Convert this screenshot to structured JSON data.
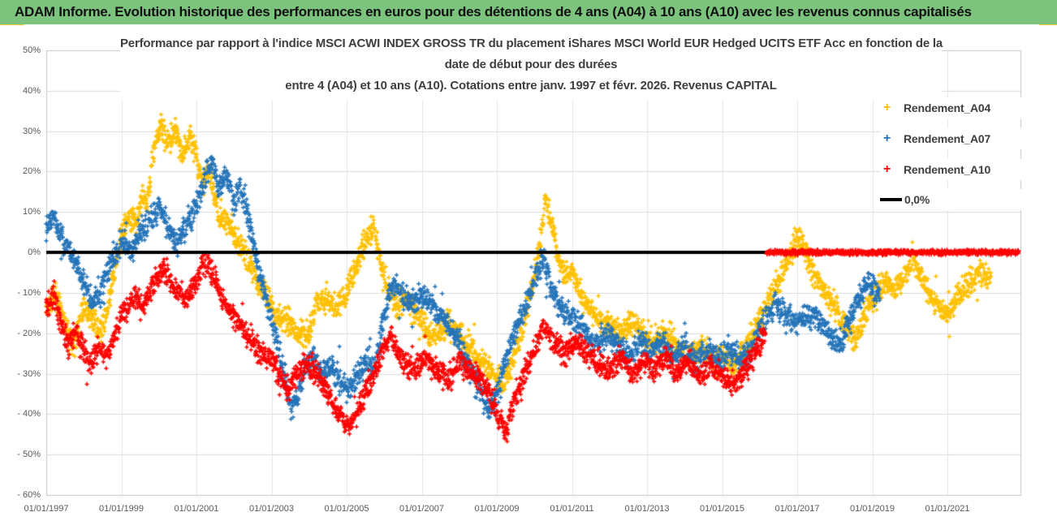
{
  "page": {
    "header_title": "ADAM Informe. Evolution historique des performances en euros pour des détentions de 4 ans (A04) à 10 ans (A10) avec les revenus connus capitalisés",
    "colors": {
      "header_bg": "#7cc47e",
      "accent_gold": "#f1c232"
    }
  },
  "chart": {
    "title_lines": [
      "Performance par rapport à l'indice MSCI ACWI INDEX GROSS TR  du placement iShares MSCI World EUR Hedged UCITS ETF Acc en fonction de la",
      "date de début pour des durées",
      "entre 4 (A04) et 10 ans (A10).  Cotations entre janv. 1997 et févr. 2026. Revenus CAPITAL"
    ],
    "y_tick_labels": [
      "50%",
      "40%",
      "30%",
      "20%",
      "10%",
      "0%",
      "- 10%",
      "- 20%",
      "- 30%",
      "- 40%",
      "- 50%",
      "- 60%"
    ],
    "x_tick_labels": [
      "01/01/1997",
      "01/01/1999",
      "01/01/2001",
      "01/01/2003",
      "01/01/2005",
      "01/01/2007",
      "01/01/2009",
      "01/01/2011",
      "01/01/2013",
      "01/01/2015",
      "01/01/2017",
      "01/01/2019",
      "01/01/2021"
    ],
    "legend": [
      {
        "label": "Rendement_A04",
        "marker": "plus",
        "color": "#ffc000"
      },
      {
        "label": "Rendement_A07",
        "marker": "plus",
        "color": "#2574b9"
      },
      {
        "label": "Rendement_A10",
        "marker": "plus",
        "color": "#ff0000"
      },
      {
        "label": "0,0%",
        "marker": "line",
        "color": "#000000"
      }
    ]
  },
  "chart_data": {
    "type": "scatter",
    "title": "Performance par rapport à l'indice MSCI ACWI INDEX GROSS TR du placement iShares MSCI World EUR Hedged UCITS ETF Acc en fonction de la date de début pour des durées entre 4 (A04) et 10 ans (A10). Cotations entre janv. 1997 et févr. 2026. Revenus CAPITAL",
    "xlabel": "",
    "ylabel": "",
    "x_axis_dates_start": "01/01/1997",
    "x_range_years": [
      1997.0,
      2022.95
    ],
    "ylim_percent": [
      -60,
      50
    ],
    "y_step_percent": 10,
    "grid": true,
    "legend_position": "right-overlay",
    "zero_line": {
      "label": "0,0%",
      "value": 0,
      "color": "#000000"
    },
    "series": [
      {
        "name": "Rendement_A04",
        "color": "#ffc000",
        "marker": "+",
        "spread_pct": 3.2,
        "keypoints": [
          [
            1997,
            -14
          ],
          [
            1997.25,
            -10
          ],
          [
            1997.5,
            -18
          ],
          [
            1997.75,
            -22
          ],
          [
            1998,
            -13
          ],
          [
            1998.25,
            -17
          ],
          [
            1998.5,
            -20
          ],
          [
            1998.75,
            -8
          ],
          [
            1999,
            4
          ],
          [
            1999.2,
            9
          ],
          [
            1999.4,
            7
          ],
          [
            1999.55,
            14
          ],
          [
            1999.7,
            12
          ],
          [
            1999.85,
            25
          ],
          [
            2000.05,
            32
          ],
          [
            2000.2,
            27
          ],
          [
            2000.45,
            30
          ],
          [
            2000.6,
            24
          ],
          [
            2000.85,
            29
          ],
          [
            2001,
            23
          ],
          [
            2001.15,
            17
          ],
          [
            2001.35,
            20
          ],
          [
            2001.6,
            9
          ],
          [
            2001.85,
            8
          ],
          [
            2002.1,
            2
          ],
          [
            2002.35,
            -1
          ],
          [
            2002.6,
            -7
          ],
          [
            2002.8,
            -10
          ],
          [
            2003.1,
            -15
          ],
          [
            2003.4,
            -17
          ],
          [
            2003.7,
            -20
          ],
          [
            2003.95,
            -21
          ],
          [
            2004.2,
            -13
          ],
          [
            2004.45,
            -11
          ],
          [
            2004.7,
            -14
          ],
          [
            2005,
            -10
          ],
          [
            2005.25,
            -4
          ],
          [
            2005.5,
            3
          ],
          [
            2005.7,
            6
          ],
          [
            2005.9,
            -2
          ],
          [
            2006.1,
            -9
          ],
          [
            2006.35,
            -14
          ],
          [
            2006.6,
            -11
          ],
          [
            2006.85,
            -15
          ],
          [
            2007.1,
            -19
          ],
          [
            2007.4,
            -21
          ],
          [
            2007.7,
            -17
          ],
          [
            2008,
            -20
          ],
          [
            2008.3,
            -24
          ],
          [
            2008.6,
            -27
          ],
          [
            2008.9,
            -30
          ],
          [
            2009.15,
            -33
          ],
          [
            2009.35,
            -29
          ],
          [
            2009.6,
            -22
          ],
          [
            2009.8,
            -14
          ],
          [
            2010,
            -6
          ],
          [
            2010.2,
            6
          ],
          [
            2010.3,
            13
          ],
          [
            2010.45,
            7
          ],
          [
            2010.6,
            0
          ],
          [
            2010.8,
            -6
          ],
          [
            2011,
            -4
          ],
          [
            2011.2,
            -10
          ],
          [
            2011.45,
            -14
          ],
          [
            2011.7,
            -16
          ],
          [
            2012,
            -18
          ],
          [
            2012.3,
            -20
          ],
          [
            2012.6,
            -17
          ],
          [
            2012.9,
            -20
          ],
          [
            2013.2,
            -23
          ],
          [
            2013.5,
            -20
          ],
          [
            2013.8,
            -23
          ],
          [
            2014.1,
            -26
          ],
          [
            2014.4,
            -23
          ],
          [
            2014.7,
            -26
          ],
          [
            2015,
            -25
          ],
          [
            2015.3,
            -28
          ],
          [
            2015.6,
            -24
          ],
          [
            2015.9,
            -19
          ],
          [
            2016.2,
            -12
          ],
          [
            2016.5,
            -7
          ],
          [
            2016.8,
            -1
          ],
          [
            2017,
            3
          ],
          [
            2017.2,
            1
          ],
          [
            2017.45,
            -5
          ],
          [
            2017.7,
            -9
          ],
          [
            2018,
            -14
          ],
          [
            2018.3,
            -18
          ],
          [
            2018.55,
            -22
          ],
          [
            2018.8,
            -15
          ],
          [
            2019.1,
            -10
          ],
          [
            2019.35,
            -7
          ],
          [
            2019.6,
            -10
          ],
          [
            2019.85,
            -6
          ],
          [
            2020.1,
            -2
          ],
          [
            2020.4,
            -8
          ],
          [
            2020.7,
            -13
          ],
          [
            2020.95,
            -16
          ],
          [
            2021.2,
            -12
          ],
          [
            2021.5,
            -8
          ],
          [
            2021.8,
            -5
          ],
          [
            2022,
            -6
          ],
          [
            2022.17,
            -6
          ]
        ]
      },
      {
        "name": "Rendement_A07",
        "color": "#2574b9",
        "marker": "+",
        "spread_pct": 3.2,
        "keypoints": [
          [
            1997,
            5
          ],
          [
            1997.2,
            9
          ],
          [
            1997.45,
            3
          ],
          [
            1997.7,
            -1
          ],
          [
            1998,
            -7
          ],
          [
            1998.25,
            -13
          ],
          [
            1998.5,
            -8
          ],
          [
            1998.75,
            -2
          ],
          [
            1999,
            3
          ],
          [
            1999.25,
            0
          ],
          [
            1999.5,
            5
          ],
          [
            1999.75,
            8
          ],
          [
            2000,
            11
          ],
          [
            2000.25,
            6
          ],
          [
            2000.5,
            2
          ],
          [
            2000.75,
            7
          ],
          [
            2001,
            12
          ],
          [
            2001.2,
            18
          ],
          [
            2001.4,
            23
          ],
          [
            2001.6,
            16
          ],
          [
            2001.8,
            19
          ],
          [
            2002,
            13
          ],
          [
            2002.2,
            16
          ],
          [
            2002.35,
            10
          ],
          [
            2002.55,
            0
          ],
          [
            2002.75,
            -8
          ],
          [
            2002.95,
            -15
          ],
          [
            2003.15,
            -22
          ],
          [
            2003.35,
            -31
          ],
          [
            2003.5,
            -39
          ],
          [
            2003.7,
            -36
          ],
          [
            2003.9,
            -28
          ],
          [
            2004.1,
            -26
          ],
          [
            2004.35,
            -30
          ],
          [
            2004.6,
            -28
          ],
          [
            2004.85,
            -32
          ],
          [
            2005.05,
            -34
          ],
          [
            2005.25,
            -31
          ],
          [
            2005.5,
            -27
          ],
          [
            2005.75,
            -29
          ],
          [
            2005.95,
            -18
          ],
          [
            2006.15,
            -9
          ],
          [
            2006.4,
            -9
          ],
          [
            2006.7,
            -13
          ],
          [
            2007,
            -10
          ],
          [
            2007.3,
            -13
          ],
          [
            2007.6,
            -17
          ],
          [
            2007.9,
            -21
          ],
          [
            2008.2,
            -27
          ],
          [
            2008.5,
            -33
          ],
          [
            2008.75,
            -39
          ],
          [
            2009,
            -36
          ],
          [
            2009.2,
            -28
          ],
          [
            2009.45,
            -20
          ],
          [
            2009.7,
            -14
          ],
          [
            2009.95,
            -9
          ],
          [
            2010.1,
            -4
          ],
          [
            2010.25,
            -1
          ],
          [
            2010.4,
            -7
          ],
          [
            2010.6,
            -12
          ],
          [
            2010.8,
            -14
          ],
          [
            2011,
            -16
          ],
          [
            2011.3,
            -19
          ],
          [
            2011.6,
            -23
          ],
          [
            2011.9,
            -20
          ],
          [
            2012.2,
            -23
          ],
          [
            2012.5,
            -26
          ],
          [
            2012.8,
            -22
          ],
          [
            2013.1,
            -25
          ],
          [
            2013.4,
            -22
          ],
          [
            2013.7,
            -26
          ],
          [
            2014,
            -23
          ],
          [
            2014.3,
            -27
          ],
          [
            2014.6,
            -24
          ],
          [
            2014.9,
            -27
          ],
          [
            2015.2,
            -24
          ],
          [
            2015.5,
            -27
          ],
          [
            2015.8,
            -23
          ],
          [
            2016.1,
            -18
          ],
          [
            2016.4,
            -13
          ],
          [
            2016.7,
            -15
          ],
          [
            2017,
            -17
          ],
          [
            2017.25,
            -15
          ],
          [
            2017.5,
            -16
          ],
          [
            2017.75,
            -19
          ],
          [
            2018,
            -22
          ],
          [
            2018.15,
            -23
          ],
          [
            2018.4,
            -17
          ],
          [
            2018.6,
            -12
          ],
          [
            2018.85,
            -8
          ],
          [
            2019,
            -9
          ],
          [
            2019.2,
            -11
          ]
        ]
      },
      {
        "name": "Rendement_A10",
        "color": "#ff0000",
        "marker": "+",
        "spread_pct": 3.0,
        "keypoints": [
          [
            1997,
            -14
          ],
          [
            1997.2,
            -10
          ],
          [
            1997.4,
            -18
          ],
          [
            1997.6,
            -23
          ],
          [
            1997.8,
            -19
          ],
          [
            1998,
            -24
          ],
          [
            1998.2,
            -28
          ],
          [
            1998.4,
            -23
          ],
          [
            1998.6,
            -26
          ],
          [
            1998.8,
            -21
          ],
          [
            1999,
            -16
          ],
          [
            1999.3,
            -11
          ],
          [
            1999.6,
            -13
          ],
          [
            1999.9,
            -7
          ],
          [
            2000.15,
            -4
          ],
          [
            2000.4,
            -9
          ],
          [
            2000.7,
            -12
          ],
          [
            2001,
            -7
          ],
          [
            2001.2,
            -2
          ],
          [
            2001.4,
            -5
          ],
          [
            2001.6,
            -9
          ],
          [
            2001.85,
            -14
          ],
          [
            2002.1,
            -17
          ],
          [
            2002.4,
            -21
          ],
          [
            2002.7,
            -25
          ],
          [
            2003,
            -26
          ],
          [
            2003.2,
            -30
          ],
          [
            2003.45,
            -34
          ],
          [
            2003.7,
            -29
          ],
          [
            2003.95,
            -28
          ],
          [
            2004.2,
            -30
          ],
          [
            2004.5,
            -35
          ],
          [
            2004.8,
            -40
          ],
          [
            2005.05,
            -43
          ],
          [
            2005.3,
            -39
          ],
          [
            2005.6,
            -33
          ],
          [
            2005.85,
            -27
          ],
          [
            2006.15,
            -21
          ],
          [
            2006.5,
            -27
          ],
          [
            2006.8,
            -29
          ],
          [
            2007.1,
            -26
          ],
          [
            2007.4,
            -29
          ],
          [
            2007.7,
            -31
          ],
          [
            2008,
            -27
          ],
          [
            2008.3,
            -30
          ],
          [
            2008.6,
            -32
          ],
          [
            2008.9,
            -37
          ],
          [
            2009.1,
            -42
          ],
          [
            2009.25,
            -44
          ],
          [
            2009.45,
            -37
          ],
          [
            2009.7,
            -31
          ],
          [
            2010,
            -24
          ],
          [
            2010.25,
            -18
          ],
          [
            2010.5,
            -22
          ],
          [
            2010.8,
            -25
          ],
          [
            2011.1,
            -22
          ],
          [
            2011.4,
            -25
          ],
          [
            2011.7,
            -27
          ],
          [
            2012,
            -29
          ],
          [
            2012.3,
            -26
          ],
          [
            2012.6,
            -30
          ],
          [
            2012.9,
            -27
          ],
          [
            2013.2,
            -29
          ],
          [
            2013.5,
            -26
          ],
          [
            2013.8,
            -30
          ],
          [
            2014.1,
            -27
          ],
          [
            2014.4,
            -31
          ],
          [
            2014.7,
            -28
          ],
          [
            2015,
            -30
          ],
          [
            2015.3,
            -33
          ],
          [
            2015.55,
            -30
          ],
          [
            2015.8,
            -26
          ],
          [
            2016,
            -22
          ],
          [
            2016.17,
            -19
          ]
        ],
        "zero_plateau": {
          "from": 2016.2,
          "to": 2022.9,
          "value": 0
        }
      }
    ]
  }
}
